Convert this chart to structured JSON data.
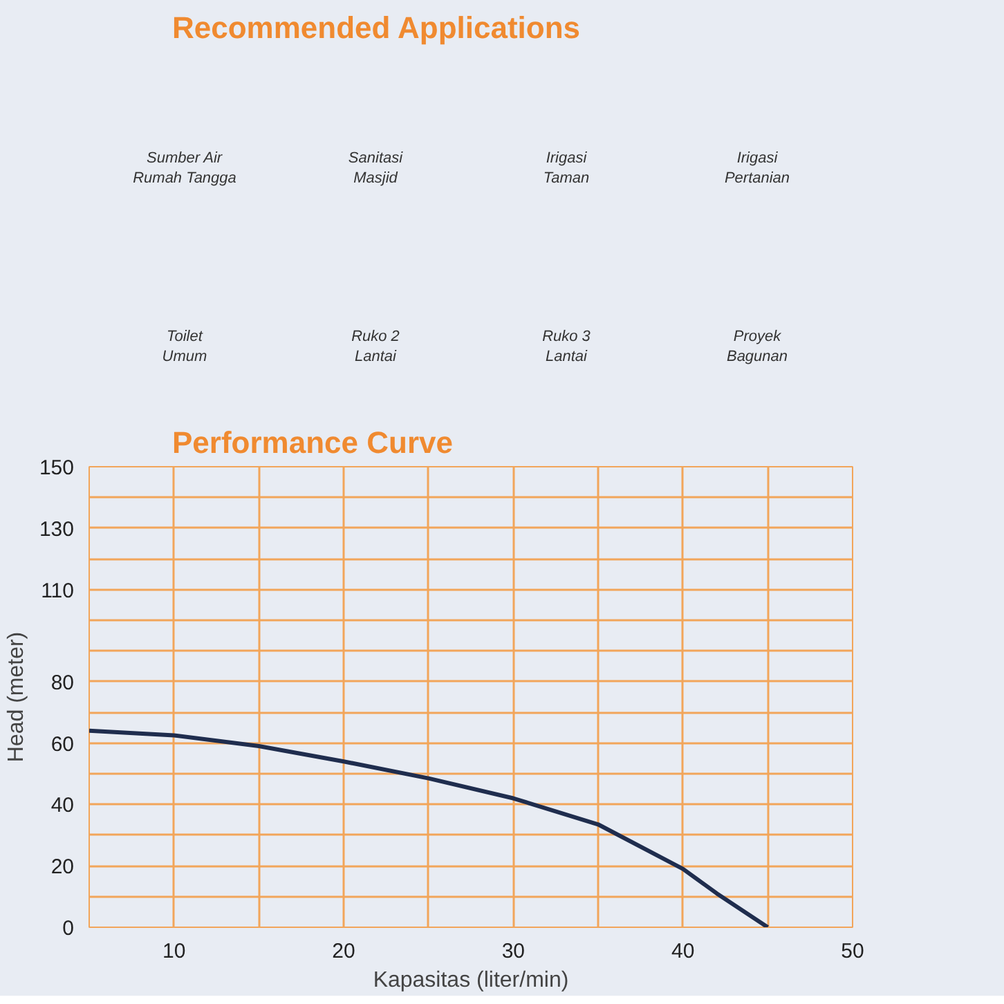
{
  "chart_data": [
    {
      "type": "other",
      "title": "Recommended Applications",
      "annotations": [
        "Sumber Air\nRumah Tangga",
        "Sanitasi\nMasjid",
        "Irigasi\nTaman",
        "Irigasi\nPertanian",
        "Toilet\nUmum",
        "Ruko 2\nLantai",
        "Ruko 3\nLantai",
        "Proyek\nBagunan"
      ]
    },
    {
      "type": "line",
      "title": "Performance Curve",
      "xlabel": "Kapasitas (liter/min)",
      "ylabel": "Head (meter)",
      "x": [
        5,
        10,
        15,
        20,
        25,
        30,
        35,
        40,
        42,
        45
      ],
      "series": [
        {
          "color": "#1f2d4e",
          "values": [
            64,
            62.5,
            59,
            54,
            48.5,
            42,
            33.5,
            19,
            11,
            0
          ]
        }
      ],
      "xlim": [
        5,
        50
      ],
      "ylim": [
        0,
        150
      ],
      "xticks": [
        {
          "value": 5,
          "label": null
        },
        10,
        {
          "value": 15,
          "label": null
        },
        20,
        {
          "value": 25,
          "label": null
        },
        30,
        {
          "value": 35,
          "label": null
        },
        40,
        {
          "value": 45,
          "label": null
        },
        50
      ],
      "yticks": [
        0,
        {
          "value": 10,
          "label": null
        },
        20,
        {
          "value": 30,
          "label": null
        },
        40,
        {
          "value": 50,
          "label": null
        },
        60,
        {
          "value": 70,
          "label": null
        },
        80,
        {
          "value": 90,
          "label": null
        },
        {
          "value": 100,
          "label": null
        },
        110,
        {
          "value": 120,
          "label": null
        },
        130,
        {
          "value": 140,
          "label": null
        },
        150
      ],
      "grid": true
    }
  ]
}
